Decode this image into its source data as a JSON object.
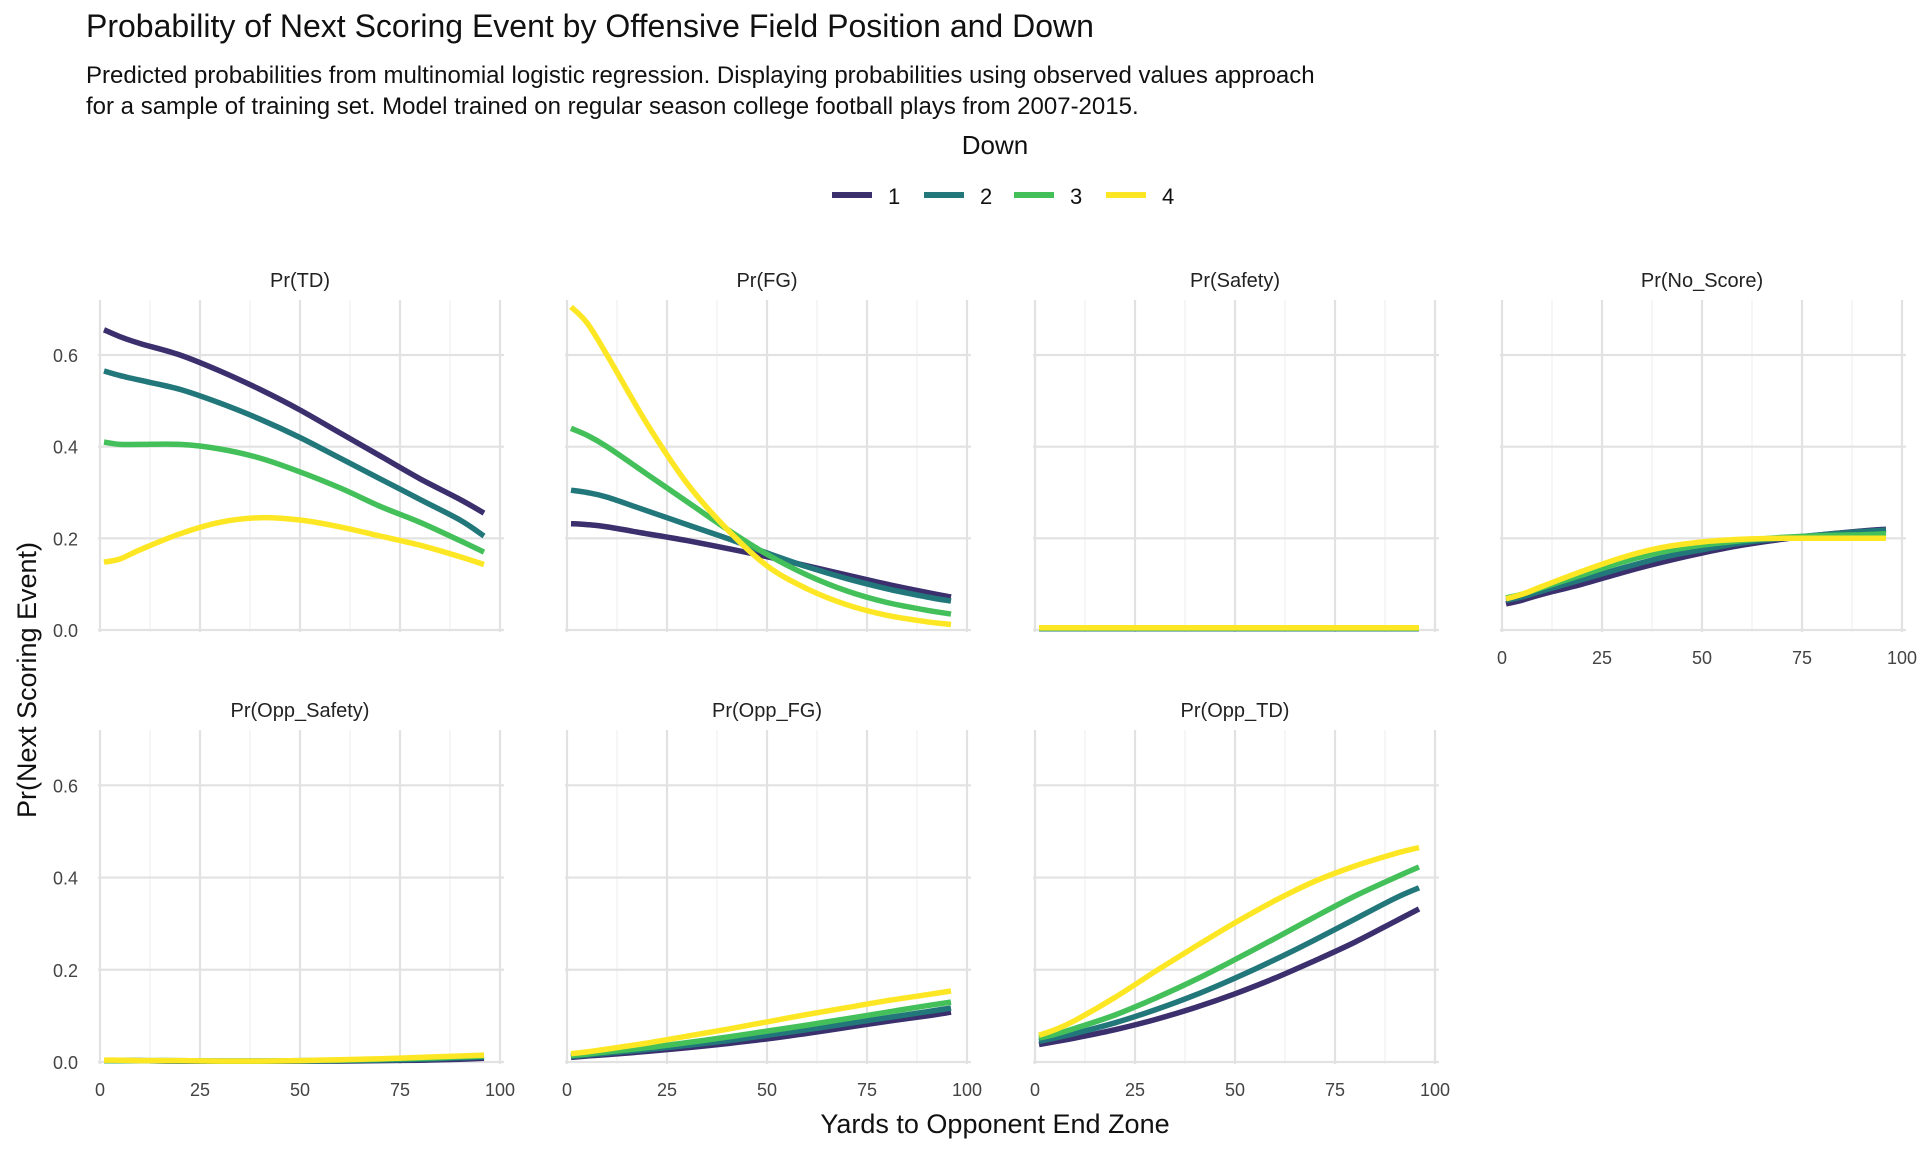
{
  "title": "Probability of Next Scoring Event by Offensive Field Position and Down",
  "subtitle_lines": [
    "Predicted probabilities from multinomial logistic regression. Displaying probabilities using observed values approach",
    "for a sample of training set. Model trained on regular season college football plays from 2007-2015."
  ],
  "chart_data": {
    "type": "line",
    "xlabel": "Yards to Opponent End Zone",
    "ylabel": "Pr(Next Scoring Event)",
    "xlim": [
      0,
      100
    ],
    "ylim": [
      0,
      0.72
    ],
    "x_ticks": [
      "0",
      "25",
      "50",
      "75",
      "100"
    ],
    "y_ticks": [
      "0.0",
      "0.2",
      "0.4",
      "0.6"
    ],
    "grid": true,
    "legend": {
      "title": "Down",
      "position": "top",
      "entries": [
        {
          "label": "1",
          "color": "#3b2f6e"
        },
        {
          "label": "2",
          "color": "#21777a"
        },
        {
          "label": "3",
          "color": "#44c05a"
        },
        {
          "label": "4",
          "color": "#fde725"
        }
      ]
    },
    "x": [
      1,
      5,
      10,
      20,
      30,
      40,
      50,
      60,
      70,
      80,
      90,
      96
    ],
    "panels": [
      {
        "title": "Pr(TD)",
        "series": [
          {
            "name": "1",
            "values": [
              0.655,
              0.64,
              0.625,
              0.6,
              0.565,
              0.525,
              0.48,
              0.43,
              0.38,
              0.33,
              0.285,
              0.255
            ]
          },
          {
            "name": "2",
            "values": [
              0.565,
              0.555,
              0.545,
              0.525,
              0.495,
              0.46,
              0.42,
              0.375,
              0.33,
              0.285,
              0.24,
              0.205
            ]
          },
          {
            "name": "3",
            "values": [
              0.41,
              0.405,
              0.405,
              0.405,
              0.395,
              0.375,
              0.345,
              0.31,
              0.27,
              0.235,
              0.195,
              0.17
            ]
          },
          {
            "name": "4",
            "values": [
              0.148,
              0.155,
              0.175,
              0.21,
              0.235,
              0.245,
              0.24,
              0.225,
              0.205,
              0.185,
              0.16,
              0.143
            ]
          }
        ]
      },
      {
        "title": "Pr(FG)",
        "series": [
          {
            "name": "1",
            "values": [
              0.232,
              0.23,
              0.225,
              0.21,
              0.195,
              0.178,
              0.16,
              0.14,
              0.12,
              0.1,
              0.082,
              0.072
            ]
          },
          {
            "name": "2",
            "values": [
              0.305,
              0.3,
              0.29,
              0.26,
              0.23,
              0.2,
              0.168,
              0.138,
              0.112,
              0.09,
              0.072,
              0.063
            ]
          },
          {
            "name": "3",
            "values": [
              0.44,
              0.425,
              0.4,
              0.34,
              0.28,
              0.22,
              0.165,
              0.12,
              0.085,
              0.06,
              0.043,
              0.035
            ]
          },
          {
            "name": "4",
            "values": [
              0.705,
              0.67,
              0.6,
              0.45,
              0.32,
              0.22,
              0.14,
              0.09,
              0.055,
              0.032,
              0.018,
              0.012
            ]
          }
        ]
      },
      {
        "title": "Pr(Safety)",
        "series": [
          {
            "name": "1",
            "values": [
              0.003,
              0.003,
              0.003,
              0.003,
              0.003,
              0.003,
              0.003,
              0.003,
              0.003,
              0.003,
              0.003,
              0.003
            ]
          },
          {
            "name": "2",
            "values": [
              0.003,
              0.003,
              0.003,
              0.003,
              0.003,
              0.003,
              0.003,
              0.003,
              0.003,
              0.003,
              0.003,
              0.003
            ]
          },
          {
            "name": "3",
            "values": [
              0.004,
              0.004,
              0.004,
              0.004,
              0.004,
              0.004,
              0.004,
              0.004,
              0.004,
              0.004,
              0.004,
              0.004
            ]
          },
          {
            "name": "4",
            "values": [
              0.005,
              0.005,
              0.005,
              0.005,
              0.005,
              0.005,
              0.005,
              0.005,
              0.005,
              0.005,
              0.005,
              0.005
            ]
          }
        ]
      },
      {
        "title": "Pr(No_Score)",
        "series": [
          {
            "name": "1",
            "values": [
              0.057,
              0.065,
              0.078,
              0.1,
              0.125,
              0.148,
              0.168,
              0.185,
              0.198,
              0.208,
              0.216,
              0.22
            ]
          },
          {
            "name": "2",
            "values": [
              0.065,
              0.072,
              0.085,
              0.11,
              0.135,
              0.158,
              0.175,
              0.19,
              0.2,
              0.208,
              0.215,
              0.218
            ]
          },
          {
            "name": "3",
            "values": [
              0.07,
              0.078,
              0.092,
              0.12,
              0.148,
              0.17,
              0.185,
              0.195,
              0.202,
              0.206,
              0.208,
              0.21
            ]
          },
          {
            "name": "4",
            "values": [
              0.068,
              0.078,
              0.095,
              0.128,
              0.158,
              0.18,
              0.192,
              0.198,
              0.2,
              0.2,
              0.2,
              0.2
            ]
          }
        ]
      },
      {
        "title": "Pr(Opp_Safety)",
        "series": [
          {
            "name": "1",
            "values": [
              0.003,
              0.003,
              0.003,
              0.002,
              0.002,
              0.002,
              0.002,
              0.002,
              0.003,
              0.004,
              0.006,
              0.008
            ]
          },
          {
            "name": "2",
            "values": [
              0.003,
              0.003,
              0.003,
              0.002,
              0.002,
              0.002,
              0.002,
              0.003,
              0.004,
              0.006,
              0.009,
              0.011
            ]
          },
          {
            "name": "3",
            "values": [
              0.003,
              0.003,
              0.003,
              0.003,
              0.002,
              0.002,
              0.003,
              0.004,
              0.006,
              0.008,
              0.011,
              0.013
            ]
          },
          {
            "name": "4",
            "values": [
              0.004,
              0.004,
              0.003,
              0.003,
              0.002,
              0.002,
              0.003,
              0.005,
              0.007,
              0.01,
              0.013,
              0.015
            ]
          }
        ]
      },
      {
        "title": "Pr(Opp_FG)",
        "series": [
          {
            "name": "1",
            "values": [
              0.01,
              0.013,
              0.016,
              0.023,
              0.031,
              0.04,
              0.05,
              0.062,
              0.075,
              0.088,
              0.1,
              0.108
            ]
          },
          {
            "name": "2",
            "values": [
              0.012,
              0.015,
              0.019,
              0.027,
              0.036,
              0.046,
              0.058,
              0.07,
              0.083,
              0.096,
              0.109,
              0.117
            ]
          },
          {
            "name": "3",
            "values": [
              0.014,
              0.017,
              0.022,
              0.031,
              0.042,
              0.054,
              0.067,
              0.08,
              0.094,
              0.108,
              0.122,
              0.13
            ]
          },
          {
            "name": "4",
            "values": [
              0.018,
              0.022,
              0.028,
              0.041,
              0.056,
              0.071,
              0.087,
              0.103,
              0.118,
              0.133,
              0.146,
              0.154
            ]
          }
        ]
      },
      {
        "title": "Pr(Opp_TD)",
        "series": [
          {
            "name": "1",
            "values": [
              0.038,
              0.044,
              0.052,
              0.07,
              0.092,
              0.118,
              0.148,
              0.182,
              0.22,
              0.26,
              0.305,
              0.332
            ]
          },
          {
            "name": "2",
            "values": [
              0.045,
              0.052,
              0.062,
              0.085,
              0.113,
              0.145,
              0.182,
              0.222,
              0.265,
              0.31,
              0.355,
              0.378
            ]
          },
          {
            "name": "3",
            "values": [
              0.052,
              0.06,
              0.073,
              0.102,
              0.138,
              0.178,
              0.222,
              0.268,
              0.315,
              0.36,
              0.4,
              0.423
            ]
          },
          {
            "name": "4",
            "values": [
              0.058,
              0.07,
              0.09,
              0.14,
              0.196,
              0.25,
              0.302,
              0.35,
              0.392,
              0.425,
              0.452,
              0.465
            ]
          }
        ]
      }
    ]
  }
}
